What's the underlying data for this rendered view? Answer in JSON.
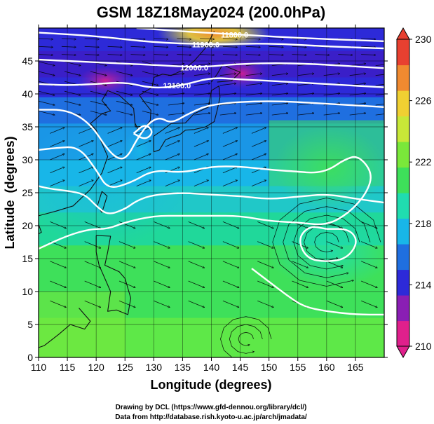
{
  "chart_data": {
    "type": "heatmap",
    "title": "GSM 18Z18May2024 (200.0hPa)",
    "xlabel": "Longitude (degrees)",
    "ylabel": "Latitude  (degrees)",
    "xlim": [
      110,
      170
    ],
    "ylim": [
      0,
      50
    ],
    "x_ticks": [
      "110",
      "115",
      "120",
      "125",
      "130",
      "135",
      "140",
      "145",
      "150",
      "155",
      "160",
      "165"
    ],
    "y_ticks": [
      "0",
      "5",
      "10",
      "15",
      "20",
      "25",
      "30",
      "35",
      "40",
      "45"
    ],
    "grid": true,
    "colorbar": {
      "range": [
        210,
        230
      ],
      "ticks": [
        "210",
        "214",
        "218",
        "222",
        "226",
        "230"
      ],
      "colors": [
        "#e0208c",
        "#8a1eb4",
        "#2d2ad8",
        "#1f6fe0",
        "#18b6e8",
        "#20dcb0",
        "#3ee05a",
        "#7ae83a",
        "#c8e838",
        "#f0d032",
        "#f08a30",
        "#e84030"
      ]
    },
    "contours": [
      {
        "label": "11800.0",
        "values": [
          [
            127,
            50
          ],
          [
            135,
            49.5
          ],
          [
            145,
            49
          ],
          [
            155,
            48.5
          ],
          [
            170,
            48
          ]
        ]
      },
      {
        "label": "11900.0",
        "values": [
          [
            110,
            49.3
          ],
          [
            120,
            48.8
          ],
          [
            130,
            47.8
          ],
          [
            140,
            47.5
          ],
          [
            150,
            47.7
          ],
          [
            160,
            47.2
          ],
          [
            170,
            46.9
          ]
        ]
      },
      {
        "label": "12000.0",
        "values": [
          [
            110,
            45.2
          ],
          [
            120,
            44.8
          ],
          [
            130,
            44.4
          ],
          [
            138,
            44
          ],
          [
            145,
            44.6
          ],
          [
            155,
            44.7
          ],
          [
            170,
            43.9
          ]
        ]
      },
      {
        "label": "12100.0",
        "values": [
          [
            110,
            41.5
          ],
          [
            115,
            41.3
          ],
          [
            120,
            41.5
          ],
          [
            125,
            41.8
          ],
          [
            130,
            40.8
          ],
          [
            135,
            41.3
          ],
          [
            140,
            42.5
          ],
          [
            145,
            42.2
          ],
          [
            150,
            42
          ],
          [
            160,
            41.5
          ],
          [
            170,
            41
          ]
        ]
      },
      {
        "label": "",
        "values": [
          [
            110,
            37.6
          ],
          [
            115,
            37.6
          ],
          [
            119,
            35.5
          ],
          [
            122,
            31.5
          ],
          [
            124,
            30
          ],
          [
            125.5,
            30.5
          ],
          [
            127,
            33
          ],
          [
            129,
            35.5
          ],
          [
            131,
            36.5
          ],
          [
            133,
            35.5
          ],
          [
            136,
            37
          ],
          [
            140,
            38.5
          ],
          [
            150,
            39
          ],
          [
            160,
            38.5
          ],
          [
            170,
            38
          ]
        ]
      },
      {
        "label": "",
        "values": [
          [
            110,
            31.5
          ],
          [
            113,
            31.8
          ],
          [
            117,
            32
          ],
          [
            120,
            28.5
          ],
          [
            122,
            25.5
          ],
          [
            126,
            26.5
          ],
          [
            130,
            28.5
          ],
          [
            135,
            28
          ],
          [
            140,
            29
          ],
          [
            145,
            29
          ],
          [
            150,
            28.5
          ],
          [
            155,
            28.2
          ],
          [
            158,
            28
          ],
          [
            160.5,
            28.5
          ],
          [
            163,
            30
          ],
          [
            165.5,
            30.7
          ],
          [
            168,
            28
          ],
          [
            167,
            25
          ],
          [
            164,
            22
          ],
          [
            160,
            20
          ],
          [
            155,
            20.5
          ],
          [
            150,
            20.7
          ],
          [
            145,
            21.5
          ],
          [
            140,
            21.5
          ],
          [
            135,
            21.5
          ],
          [
            130,
            21.5
          ],
          [
            125,
            20.5
          ],
          [
            122,
            19.5
          ],
          [
            119,
            19.5
          ],
          [
            115,
            18.5
          ],
          [
            110,
            16.5
          ]
        ]
      },
      {
        "label": "",
        "values": [
          [
            110,
            26
          ],
          [
            112,
            25.6
          ],
          [
            115,
            25.3
          ],
          [
            118,
            24.8
          ],
          [
            120,
            23
          ],
          [
            122,
            21.6
          ],
          [
            125,
            22.5
          ],
          [
            127,
            23.8
          ],
          [
            130,
            24.7
          ],
          [
            135,
            25
          ],
          [
            140,
            24.7
          ],
          [
            145,
            24.5
          ],
          [
            150,
            24
          ],
          [
            155,
            24.4
          ],
          [
            160,
            24.8
          ],
          [
            165,
            24.1
          ],
          [
            170,
            23.5
          ]
        ]
      },
      {
        "label": "",
        "values": [
          [
            160,
            19.5
          ],
          [
            157,
            20
          ],
          [
            155,
            18
          ],
          [
            156.5,
            15
          ],
          [
            160,
            14.5
          ],
          [
            163.5,
            15
          ],
          [
            165.5,
            17.5
          ],
          [
            164,
            19.5
          ],
          [
            160,
            19.5
          ]
        ]
      },
      {
        "label": "",
        "values": [
          [
            147,
            13.5
          ],
          [
            150,
            11.5
          ],
          [
            153,
            9.5
          ],
          [
            156,
            7.7
          ],
          [
            160,
            7
          ],
          [
            165,
            6.5
          ],
          [
            170,
            6.5
          ]
        ]
      },
      {
        "label": "",
        "values": [
          [
            126.5,
            34
          ],
          [
            128.5,
            35.5
          ],
          [
            130,
            34.2
          ],
          [
            128.5,
            33
          ],
          [
            126.5,
            34
          ]
        ]
      }
    ]
  },
  "credits": {
    "line1": "Drawing by DCL (https://www.gfd-dennou.org/library/dcl/)",
    "line2": "Data from http://database.rish.kyoto-u.ac.jp/arch/jmadata/"
  }
}
